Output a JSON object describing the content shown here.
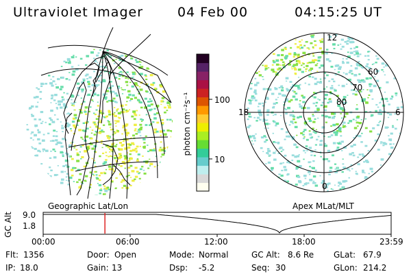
{
  "header": {
    "instrument": "Ultraviolet Imager",
    "date": "04 Feb 00",
    "time": "04:15:25 UT"
  },
  "colors": {
    "scale": [
      "#fffff0",
      "#d9d9d9",
      "#bfefef",
      "#66cccc",
      "#33cc99",
      "#66dd33",
      "#aaee22",
      "#eeee00",
      "#ffcc33",
      "#ff9900",
      "#dd5500",
      "#cc2222",
      "#aa1144",
      "#882266",
      "#552266",
      "#220022"
    ],
    "aurora_dim": "#99dddd",
    "aurora_mid": "#66ddaa",
    "aurora_green": "#88e044",
    "aurora_yellow": "#eeee44",
    "marker": "#dd2222"
  },
  "colorbar": {
    "label": "photon cm⁻²s⁻¹",
    "ticks": [
      "100",
      "10"
    ]
  },
  "left_map": {
    "caption": "Geographic Lat/Lon"
  },
  "right_map": {
    "caption": "Apex MLat/MLT",
    "mlt_labels": {
      "top": "12",
      "bottom": "0",
      "left": "18",
      "right": "6"
    },
    "lat_labels": [
      "60",
      "70",
      "80"
    ]
  },
  "altitude_panel": {
    "axis_label": "GC Alt",
    "ymax": "9.0",
    "ymin": "1.8",
    "time_ticks": [
      "00:00",
      "06:00",
      "12:00",
      "18:00",
      "23:59"
    ],
    "marker_time_hours": 4.26
  },
  "footer": {
    "flt_label": "Flt:",
    "flt_value": "1356",
    "ip_label": "IP:",
    "ip_value": "18.0",
    "door_label": "Door:",
    "door_value": "Open",
    "gain_label": "Gain:",
    "gain_value": "13",
    "mode_label": "Mode:",
    "mode_value": "Normal",
    "dsp_label": "Dsp:",
    "dsp_value": "-5.2",
    "gcalt_label": "GC Alt:",
    "gcalt_value": "8.6 Re",
    "seq_label": "Seq:",
    "seq_value": "30",
    "glat_label": "GLat:",
    "glat_value": "67.9",
    "glon_label": "GLon:",
    "glon_value": "214.2"
  }
}
